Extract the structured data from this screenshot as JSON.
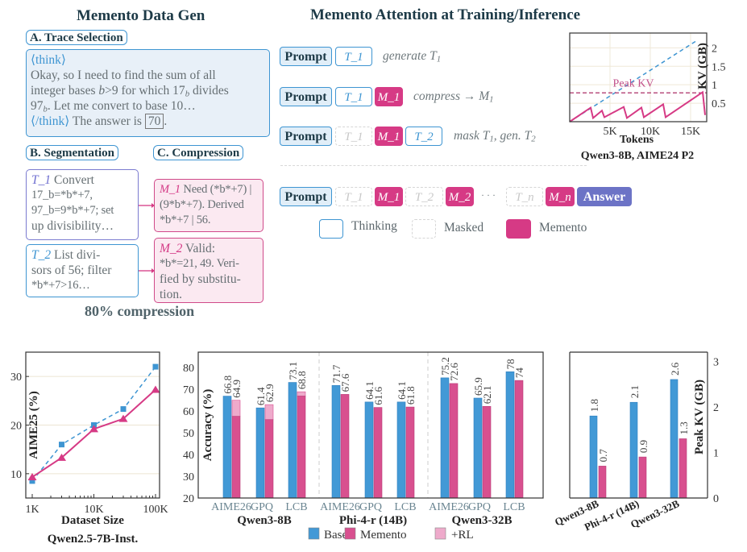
{
  "data_gen": {
    "title": "Memento Data Gen",
    "trace_selection_label": "A. Trace Selection",
    "trace": {
      "open_tag": "⟨think⟩",
      "lines": [
        "Okay, so I need to find the sum of all",
        "integer bases *b*>9 for which 17_b divides",
        "97_b. Let me convert to base 10…"
      ],
      "close_tag": "⟨/think⟩",
      "answer_prefix": "The answer is",
      "answer": "70",
      "answer_suffix": "."
    },
    "segmentation_label": "B. Segmentation",
    "compression_label": "C. Compression",
    "segments": [
      {
        "tag": "T_1",
        "lines": [
          "Convert",
          "17_b=*b*+7,",
          "97_b=9*b*+7; set",
          "up divisibility…"
        ]
      },
      {
        "tag": "T_2",
        "lines": [
          "List divi-",
          "sors of 56; filter",
          "*b*+7>16…"
        ]
      }
    ],
    "mementos": [
      {
        "tag": "M_1",
        "lines": [
          "Need (*b*+7) |",
          "(9*b*+7). Derived",
          "*b*+7 | 56."
        ]
      },
      {
        "tag": "M_2",
        "lines": [
          "Valid:",
          "*b*=21, 49. Veri-",
          "fied by substitu-",
          "tion."
        ]
      }
    ],
    "compression_ratio_label": "80% compression"
  },
  "attention": {
    "title": "Memento Attention at Training/Inference",
    "prompt_label": "Prompt",
    "rows": [
      {
        "note": "generate T_1"
      },
      {
        "note": "compress → M_1"
      },
      {
        "note": "mask T_1, gen. T_2"
      }
    ],
    "tokens": {
      "T1": "T_1",
      "T2": "T_2",
      "Tn": "T_n",
      "M1": "M_1",
      "M2": "M_2",
      "Mn": "M_n",
      "ellipsis": "· · ·",
      "answer": "Answer"
    },
    "legend": {
      "thinking": "Thinking",
      "masked": "Masked",
      "memento": "Memento"
    },
    "colors": {
      "thinking": "#3e95d2",
      "masked": "#d6d6d6",
      "memento": "#d63a85",
      "answer": "#6c73c6",
      "prompt_fill": "#e1eef8"
    }
  },
  "chart_data": [
    {
      "id": "kv_trace",
      "type": "line",
      "caption": "Qwen3-8B, AIME24 P2",
      "xlabel": "Tokens",
      "ylabel": "KV (GB)",
      "xticks": [
        {
          "v": 5,
          "label": "5K"
        },
        {
          "v": 10,
          "label": "10K"
        },
        {
          "v": 15,
          "label": "15K"
        }
      ],
      "yticks": [
        {
          "v": 0.5,
          "label": "0.5"
        },
        {
          "v": 1,
          "label": "1"
        },
        {
          "v": 1.5,
          "label": "1.5"
        },
        {
          "v": 2,
          "label": "2"
        }
      ],
      "xlim": [
        0,
        17
      ],
      "ylim": [
        0,
        2.4
      ],
      "grid": true,
      "series": [
        {
          "style": "dashed",
          "color": "#3e95d2",
          "x": [
            0,
            15.8
          ],
          "y": [
            0,
            2.2
          ]
        },
        {
          "style": "solid",
          "color": "#d63a85",
          "x": [
            0,
            2.6,
            2.9,
            4.0,
            4.3,
            6.7,
            7.1,
            8.9,
            9.2,
            11.6,
            11.9,
            16.5,
            16.8
          ],
          "y": [
            0,
            0.38,
            0.1,
            0.3,
            0.12,
            0.4,
            0.1,
            0.38,
            0.12,
            0.47,
            0.12,
            0.8,
            0.18
          ]
        }
      ],
      "reference_line": {
        "y": 0.78,
        "label": "Peak KV",
        "color": "#b9507f"
      }
    },
    {
      "id": "dataset_scaling",
      "type": "line",
      "caption": "Qwen2.5-7B-Inst.",
      "xlabel": "Dataset Size",
      "ylabel": "AIME25 (%)",
      "xscale": "log",
      "xticks": [
        {
          "v": 1000,
          "label": "1K"
        },
        {
          "v": 10000,
          "label": "10K"
        },
        {
          "v": 100000,
          "label": "100K"
        }
      ],
      "yticks": [
        {
          "v": 10,
          "label": "10"
        },
        {
          "v": 20,
          "label": "20"
        },
        {
          "v": 30,
          "label": "30"
        }
      ],
      "ylim": [
        5,
        35
      ],
      "grid": true,
      "series": [
        {
          "style": "dashed",
          "marker": "square",
          "color": "#3e95d2",
          "x": [
            1000,
            3000,
            10000,
            30000,
            100000
          ],
          "y": [
            8.5,
            16,
            20,
            23.3,
            32
          ]
        },
        {
          "style": "solid",
          "marker": "triangle",
          "color": "#d63a85",
          "x": [
            1000,
            3000,
            10000,
            30000,
            100000
          ],
          "y": [
            9.3,
            13.3,
            19.2,
            21.3,
            27.3
          ]
        }
      ]
    },
    {
      "id": "accuracy",
      "type": "bar",
      "ylabel": "Accuracy (%)",
      "ylim": [
        20,
        87
      ],
      "yticks": [
        20,
        30,
        40,
        50,
        60,
        70,
        80
      ],
      "groups": [
        {
          "name": "Qwen3-8B",
          "categories": [
            "AIME26",
            "GPQ",
            "LCB"
          ],
          "base": [
            66.8,
            61.4,
            73.1
          ],
          "memento": [
            57.5,
            56,
            66.8
          ],
          "memento_rl": [
            64.9,
            62.9,
            68.8
          ]
        },
        {
          "name": "Phi-4-r (14B)",
          "categories": [
            "AIME26",
            "GPQ",
            "LCB"
          ],
          "base": [
            71.7,
            64.1,
            64.1
          ],
          "memento": [
            67.6,
            61.6,
            61.8
          ]
        },
        {
          "name": "Qwen3-32B",
          "categories": [
            "AIME26",
            "GPQ",
            "LCB"
          ],
          "base": [
            75.2,
            65.9,
            78
          ],
          "memento": [
            72.6,
            62.1,
            74
          ]
        }
      ],
      "value_labels": [
        [
          "66.8",
          "64.9"
        ],
        [
          "61.4",
          "62.9"
        ],
        [
          "73.1",
          "68.8"
        ],
        [
          "71.7",
          "67.6"
        ],
        [
          "64.1",
          "61.6"
        ],
        [
          "64.1",
          "61.8"
        ],
        [
          "75.2",
          "72.6"
        ],
        [
          "65.9",
          "62.1"
        ],
        [
          "78",
          "74"
        ]
      ],
      "legend": [
        {
          "name": "Base",
          "color": "#4299d6"
        },
        {
          "name": "Memento",
          "color": "#d8508f"
        },
        {
          "name": "+RL",
          "color": "#eeaacb"
        }
      ],
      "legend_placement": "bottom"
    },
    {
      "id": "peak_kv",
      "type": "bar",
      "ylabel": "Peak KV (GB)",
      "ylim": [
        0,
        3.2
      ],
      "yticks": [
        0,
        1,
        2,
        3
      ],
      "categories": [
        "Qwen3-8B",
        "Phi-4-r (14B)",
        "Qwen3-32B"
      ],
      "base": [
        1.8,
        2.1,
        2.6
      ],
      "memento": [
        0.7,
        0.9,
        1.3
      ],
      "value_labels": [
        [
          "1.8",
          "0.7"
        ],
        [
          "2.1",
          "0.9"
        ],
        [
          "2.6",
          "1.3"
        ]
      ]
    }
  ]
}
